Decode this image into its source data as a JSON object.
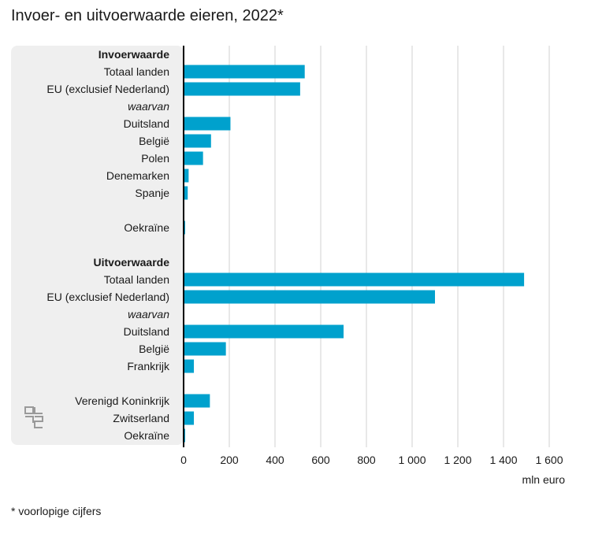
{
  "title": "Invoer- en uitvoerwaarde eieren, 2022*",
  "footnote": "* voorlopige cijfers",
  "colors": {
    "bar": "#00a1cd",
    "label_panel": "#efefef",
    "grid": "#d2d2d2",
    "axis": "#000000"
  },
  "chart_data": {
    "type": "bar",
    "orientation": "horizontal",
    "categories": [
      "Invoerwaarde",
      "Totaal landen",
      "EU (exclusief Nederland)",
      "waarvan",
      "Duitsland",
      "België",
      "Polen",
      "Denemarken",
      "Spanje",
      "",
      "Oekraïne",
      "",
      "Uitvoerwaarde",
      "Totaal landen",
      "EU (exclusief Nederland)",
      "waarvan",
      "Duitsland",
      "België",
      "Frankrijk",
      "",
      "Verenigd Koninkrijk",
      "Zwitserland",
      "Oekraïne"
    ],
    "category_style": [
      "bold",
      "normal",
      "normal",
      "italic",
      "normal",
      "normal",
      "normal",
      "normal",
      "normal",
      "normal",
      "normal",
      "normal",
      "bold",
      "normal",
      "normal",
      "italic",
      "normal",
      "normal",
      "normal",
      "normal",
      "normal",
      "normal",
      "normal"
    ],
    "values": [
      null,
      530,
      510,
      null,
      205,
      120,
      85,
      22,
      18,
      null,
      2,
      null,
      null,
      1490,
      1100,
      null,
      700,
      185,
      45,
      null,
      115,
      45,
      1
    ],
    "xlabel": "mln euro",
    "xlim": [
      0,
      1600
    ],
    "xticks": [
      0,
      200,
      400,
      600,
      800,
      1000,
      1200,
      1400,
      1600
    ],
    "xtick_labels": [
      "0",
      "200",
      "400",
      "600",
      "800",
      "1 000",
      "1 200",
      "1 400",
      "1 600"
    ],
    "grid": true
  },
  "logo": {
    "name": "cbs-logo-icon"
  }
}
